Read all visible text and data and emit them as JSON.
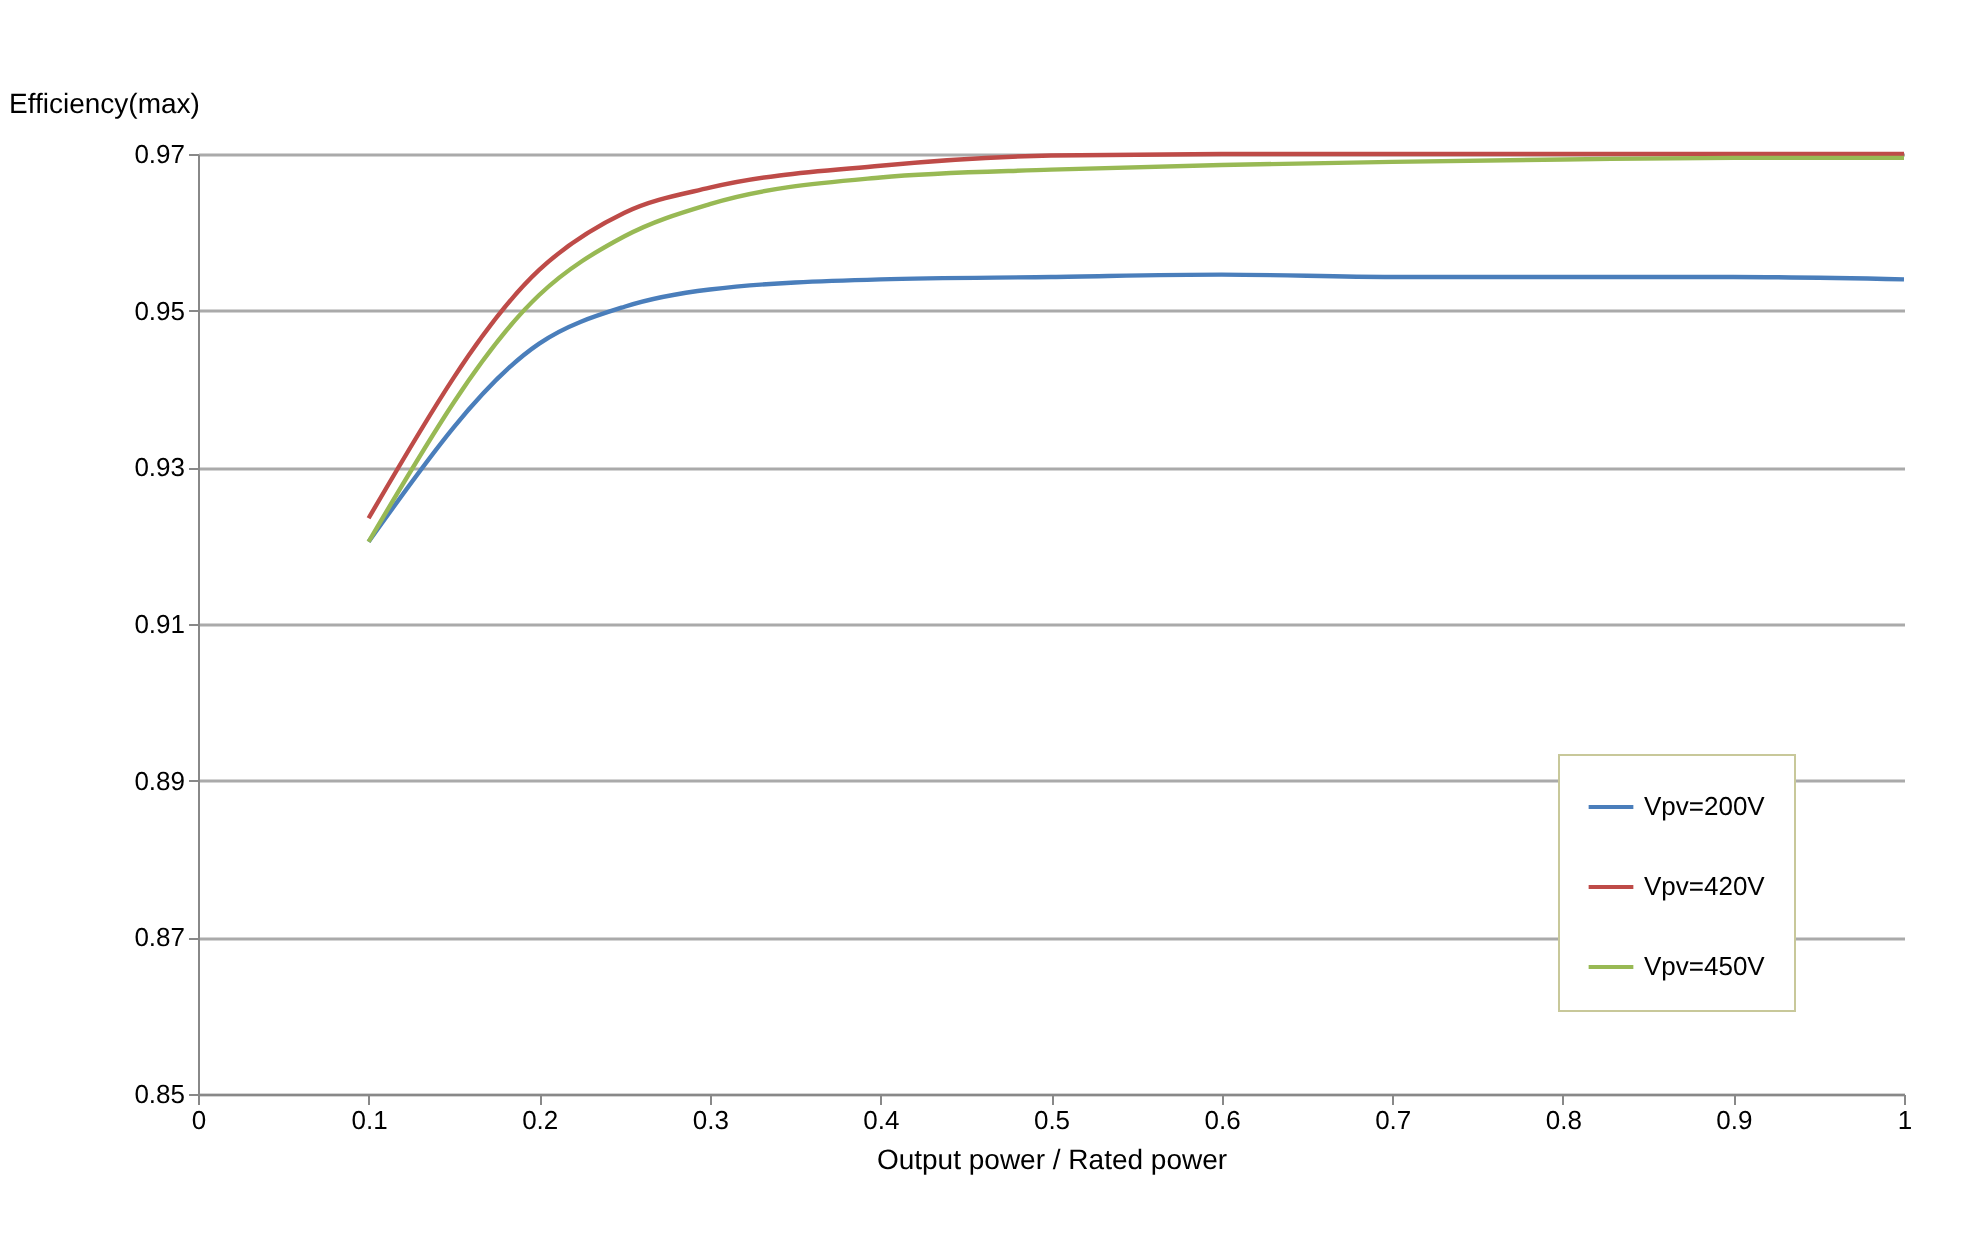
{
  "chart_data": {
    "type": "line",
    "xlabel": "Output power / Rated power",
    "ylabel": "Efficiency(max)",
    "x": [
      0.1,
      0.2,
      0.25,
      0.3,
      0.4,
      0.5,
      0.6,
      0.7,
      0.8,
      0.9,
      1
    ],
    "series": [
      {
        "name": "Vpv=200V",
        "color": "#4a7ebb",
        "values": [
          0.9205,
          0.9458,
          0.9505,
          0.9527,
          0.954,
          0.9543,
          0.9546,
          0.9543,
          0.9543,
          0.9543,
          0.954
        ]
      },
      {
        "name": "Vpv=420V",
        "color": "#be4b48",
        "values": [
          0.9235,
          0.9552,
          0.9625,
          0.9657,
          0.9685,
          0.9698,
          0.97,
          0.97,
          0.97,
          0.97,
          0.97
        ]
      },
      {
        "name": "Vpv=450V",
        "color": "#98b954",
        "values": [
          0.9205,
          0.952,
          0.9595,
          0.9636,
          0.967,
          0.968,
          0.9686,
          0.969,
          0.9693,
          0.9695,
          0.9695
        ]
      }
    ],
    "xlim": [
      0,
      1
    ],
    "xticks": [
      0,
      0.1,
      0.2,
      0.3,
      0.4,
      0.5,
      0.6,
      0.7,
      0.8,
      0.9,
      1
    ],
    "ylim": [
      0.85,
      0.97
    ],
    "yticks": [
      0.85,
      0.87,
      0.89,
      0.91,
      0.93,
      0.95,
      0.97
    ],
    "grid": "y",
    "legend": "bottom right",
    "line_style": "solid"
  }
}
